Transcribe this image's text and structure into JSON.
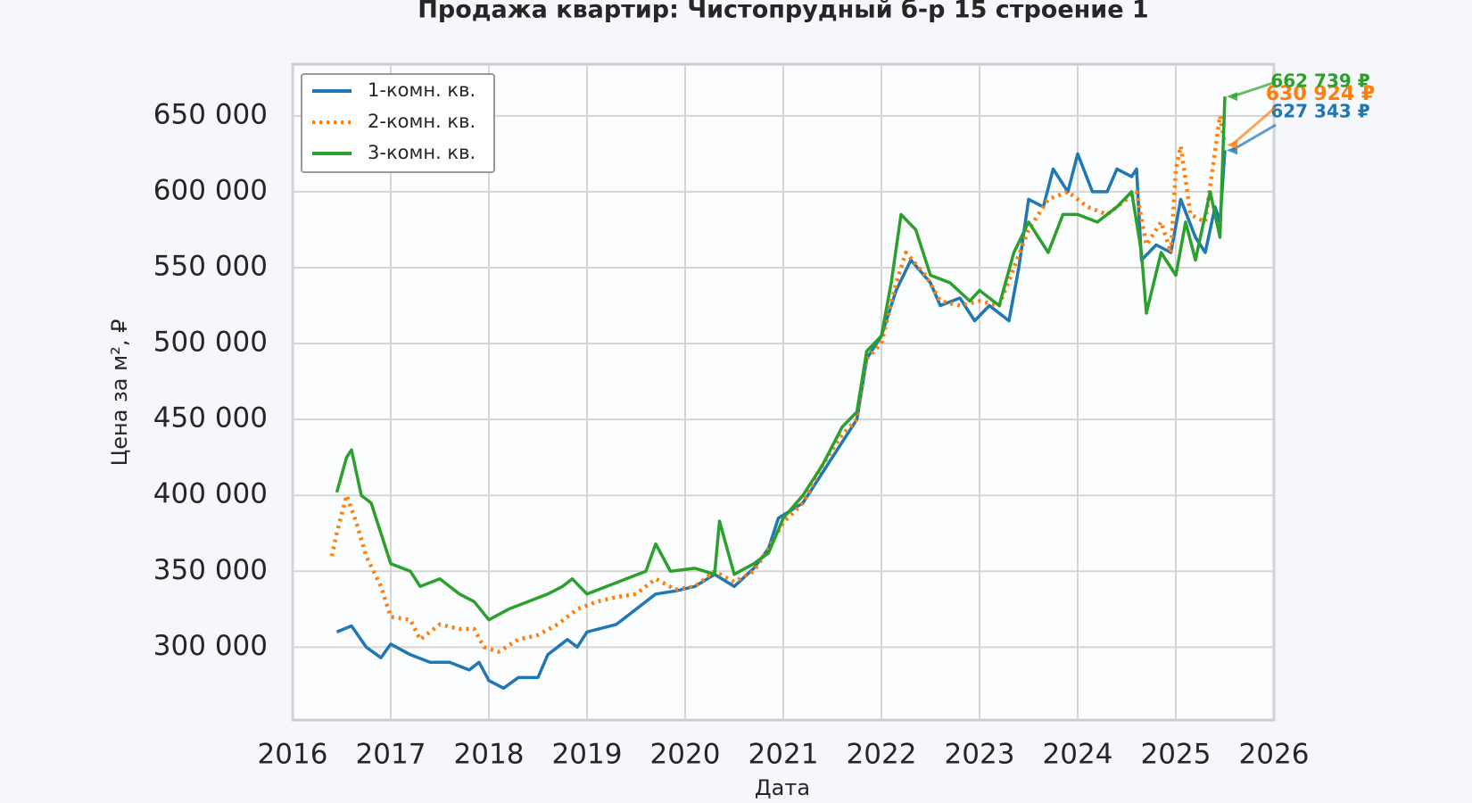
{
  "chart_data": {
    "type": "line",
    "title": "Продажа квартир: Чистопрудный б-р 15 строение 1",
    "x_label": "Дата",
    "y_label": "Цена за м², ₽",
    "xlim": [
      2016,
      2026
    ],
    "xticks": [
      2016,
      2017,
      2018,
      2019,
      2020,
      2021,
      2022,
      2023,
      2024,
      2025,
      2026
    ],
    "ylim": [
      252000,
      684000
    ],
    "yticks": [
      {
        "value": 300000,
        "label": "300 000"
      },
      {
        "value": 350000,
        "label": "350 000"
      },
      {
        "value": 400000,
        "label": "400 000"
      },
      {
        "value": 450000,
        "label": "450 000"
      },
      {
        "value": 500000,
        "label": "500 000"
      },
      {
        "value": 550000,
        "label": "550 000"
      },
      {
        "value": 600000,
        "label": "600 000"
      },
      {
        "value": 650000,
        "label": "650 000"
      }
    ],
    "grid": true,
    "legend": "upper-left",
    "series": [
      {
        "name": "1-комн. кв.",
        "color": "#1f77b4",
        "linestyle": "solid",
        "end_value": 627343,
        "end_label": "627 343 ₽",
        "x": [
          2016.45,
          2016.6,
          2016.75,
          2016.9,
          2017.0,
          2017.2,
          2017.4,
          2017.6,
          2017.8,
          2017.9,
          2018.0,
          2018.15,
          2018.3,
          2018.5,
          2018.6,
          2018.8,
          2018.9,
          2019.0,
          2019.3,
          2019.5,
          2019.7,
          2019.9,
          2020.1,
          2020.3,
          2020.5,
          2020.7,
          2020.85,
          2020.95,
          2021.2,
          2021.4,
          2021.6,
          2021.75,
          2021.85,
          2022.0,
          2022.15,
          2022.3,
          2022.5,
          2022.6,
          2022.8,
          2022.95,
          2023.1,
          2023.3,
          2023.4,
          2023.5,
          2023.65,
          2023.75,
          2023.9,
          2024.0,
          2024.15,
          2024.3,
          2024.4,
          2024.55,
          2024.6,
          2024.65,
          2024.8,
          2024.95,
          2025.05,
          2025.2,
          2025.3,
          2025.4,
          2025.45,
          2025.5
        ],
        "values": [
          310000,
          314000,
          300000,
          293000,
          302000,
          295000,
          290000,
          290000,
          285000,
          290000,
          278000,
          273000,
          280000,
          280000,
          295000,
          305000,
          300000,
          310000,
          315000,
          325000,
          335000,
          337000,
          340000,
          348000,
          340000,
          352000,
          365000,
          385000,
          395000,
          415000,
          435000,
          450000,
          490000,
          505000,
          535000,
          555000,
          540000,
          525000,
          530000,
          515000,
          525000,
          515000,
          550000,
          595000,
          590000,
          615000,
          600000,
          625000,
          600000,
          600000,
          615000,
          610000,
          615000,
          555000,
          565000,
          560000,
          595000,
          570000,
          560000,
          590000,
          580000,
          627343
        ]
      },
      {
        "name": "2-комн. кв.",
        "color": "#ff7f0e",
        "linestyle": "dotted",
        "end_value": 630924,
        "end_label": "630 924 ₽",
        "x": [
          2016.4,
          2016.45,
          2016.55,
          2016.65,
          2016.75,
          2016.9,
          2017.0,
          2017.2,
          2017.3,
          2017.5,
          2017.7,
          2017.85,
          2017.95,
          2018.1,
          2018.3,
          2018.5,
          2018.7,
          2018.9,
          2019.1,
          2019.3,
          2019.5,
          2019.7,
          2019.9,
          2020.1,
          2020.3,
          2020.5,
          2020.7,
          2020.85,
          2021.0,
          2021.2,
          2021.4,
          2021.6,
          2021.75,
          2021.85,
          2022.0,
          2022.15,
          2022.25,
          2022.45,
          2022.6,
          2022.8,
          2023.0,
          2023.2,
          2023.35,
          2023.5,
          2023.7,
          2023.9,
          2024.1,
          2024.3,
          2024.5,
          2024.6,
          2024.7,
          2024.85,
          2024.95,
          2025.0,
          2025.05,
          2025.15,
          2025.3,
          2025.45,
          2025.5
        ],
        "values": [
          360000,
          375000,
          400000,
          382000,
          360000,
          340000,
          320000,
          318000,
          305000,
          315000,
          312000,
          312000,
          300000,
          297000,
          305000,
          308000,
          315000,
          325000,
          330000,
          333000,
          335000,
          345000,
          338000,
          340000,
          350000,
          343000,
          350000,
          365000,
          382000,
          395000,
          420000,
          440000,
          450000,
          490000,
          500000,
          540000,
          560000,
          545000,
          528000,
          525000,
          528000,
          525000,
          550000,
          575000,
          595000,
          600000,
          590000,
          585000,
          595000,
          600000,
          565000,
          580000,
          560000,
          615000,
          630000,
          585000,
          580000,
          650000,
          630924
        ]
      },
      {
        "name": "3-комн. кв.",
        "color": "#2ca02c",
        "linestyle": "solid",
        "end_value": 662739,
        "end_label": "662 739 ₽",
        "x": [
          2016.45,
          2016.55,
          2016.6,
          2016.7,
          2016.8,
          2016.9,
          2017.0,
          2017.2,
          2017.3,
          2017.5,
          2017.7,
          2017.85,
          2018.0,
          2018.2,
          2018.4,
          2018.6,
          2018.75,
          2018.85,
          2019.0,
          2019.2,
          2019.4,
          2019.6,
          2019.7,
          2019.85,
          2020.1,
          2020.3,
          2020.35,
          2020.5,
          2020.7,
          2020.85,
          2021.0,
          2021.2,
          2021.4,
          2021.6,
          2021.75,
          2021.85,
          2022.0,
          2022.1,
          2022.2,
          2022.35,
          2022.5,
          2022.7,
          2022.9,
          2023.0,
          2023.2,
          2023.35,
          2023.5,
          2023.7,
          2023.85,
          2024.0,
          2024.2,
          2024.4,
          2024.55,
          2024.65,
          2024.7,
          2024.85,
          2025.0,
          2025.1,
          2025.2,
          2025.35,
          2025.45,
          2025.5
        ],
        "values": [
          402000,
          425000,
          430000,
          400000,
          395000,
          375000,
          355000,
          350000,
          340000,
          345000,
          335000,
          330000,
          318000,
          325000,
          330000,
          335000,
          340000,
          345000,
          335000,
          340000,
          345000,
          350000,
          368000,
          350000,
          352000,
          348000,
          383000,
          348000,
          355000,
          362000,
          385000,
          400000,
          420000,
          445000,
          455000,
          495000,
          505000,
          540000,
          585000,
          575000,
          545000,
          540000,
          528000,
          535000,
          525000,
          560000,
          580000,
          560000,
          585000,
          585000,
          580000,
          590000,
          600000,
          560000,
          520000,
          560000,
          545000,
          580000,
          555000,
          600000,
          570000,
          662739
        ]
      }
    ]
  }
}
